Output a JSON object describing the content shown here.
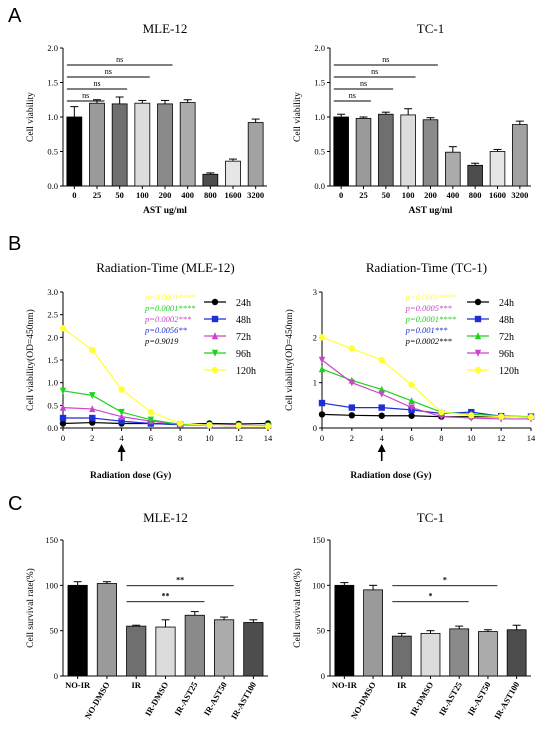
{
  "figure": {
    "panels": [
      "A",
      "B",
      "C"
    ]
  },
  "chart_data": [
    {
      "type": "bar",
      "panel": "A",
      "title": "MLE-12",
      "xlabel": "AST ug/ml",
      "ylabel": "Cell viability",
      "ylim": [
        0,
        2.0
      ],
      "yticks": [
        "0.0",
        "0.5",
        "1.0",
        "1.5",
        "2.0"
      ],
      "categories": [
        "0",
        "25",
        "50",
        "100",
        "200",
        "400",
        "800",
        "1600",
        "3200"
      ],
      "values": [
        1.0,
        1.2,
        1.19,
        1.2,
        1.19,
        1.21,
        0.17,
        0.36,
        0.92
      ],
      "errors": [
        0.15,
        0.05,
        0.1,
        0.04,
        0.05,
        0.04,
        0.02,
        0.03,
        0.05
      ],
      "fills": [
        "#000000",
        "#9a9a9a",
        "#6f6f6f",
        "#dcdcdc",
        "#8a8a8a",
        "#ababab",
        "#4d4d4d",
        "#e6e6e6",
        "#a2a2a2"
      ],
      "brackets": [
        {
          "from": 0,
          "to": 1,
          "label": "ns"
        },
        {
          "from": 0,
          "to": 2,
          "label": "ns"
        },
        {
          "from": 0,
          "to": 3,
          "label": "ns"
        },
        {
          "from": 0,
          "to": 4,
          "label": "ns"
        }
      ],
      "grid": false
    },
    {
      "type": "bar",
      "panel": "A",
      "title": "TC-1",
      "xlabel": "AST ug/ml",
      "ylabel": "Cell viability",
      "ylim": [
        0,
        2.0
      ],
      "yticks": [
        "0.0",
        "0.5",
        "1.0",
        "1.5",
        "2.0"
      ],
      "categories": [
        "0",
        "25",
        "50",
        "100",
        "200",
        "400",
        "800",
        "1600",
        "3200"
      ],
      "values": [
        1.0,
        0.98,
        1.04,
        1.03,
        0.96,
        0.49,
        0.3,
        0.5,
        0.89
      ],
      "errors": [
        0.04,
        0.02,
        0.03,
        0.09,
        0.03,
        0.08,
        0.03,
        0.03,
        0.05
      ],
      "fills": [
        "#000000",
        "#9a9a9a",
        "#6f6f6f",
        "#dcdcdc",
        "#8a8a8a",
        "#ababab",
        "#4d4d4d",
        "#e6e6e6",
        "#a2a2a2"
      ],
      "brackets": [
        {
          "from": 0,
          "to": 1,
          "label": "ns"
        },
        {
          "from": 0,
          "to": 2,
          "label": "ns"
        },
        {
          "from": 0,
          "to": 3,
          "label": "ns"
        },
        {
          "from": 0,
          "to": 4,
          "label": "ns"
        }
      ],
      "grid": false
    },
    {
      "type": "line",
      "panel": "B",
      "title": "Radiation-Time (MLE-12)",
      "xlabel": "Radiation dose (Gy)",
      "ylabel": "Cell viability(OD=450nm)",
      "xlim": [
        0,
        14
      ],
      "ylim": [
        0,
        3.0
      ],
      "xticks": [
        "0",
        "2",
        "4",
        "6",
        "8",
        "10",
        "12",
        "14"
      ],
      "yticks": [
        "0.0",
        "0.5",
        "1.0",
        "1.5",
        "2.0",
        "2.5",
        "3.0"
      ],
      "x": [
        0,
        2,
        4,
        6,
        8,
        10,
        12,
        14
      ],
      "series": [
        {
          "name": "24h",
          "color": "#000000",
          "marker": "circle",
          "values": [
            0.1,
            0.12,
            0.1,
            0.1,
            0.08,
            0.1,
            0.09,
            0.1
          ]
        },
        {
          "name": "48h",
          "color": "#1f2fd6",
          "marker": "square",
          "values": [
            0.22,
            0.22,
            0.15,
            0.1,
            0.07,
            0.06,
            0.05,
            0.05
          ]
        },
        {
          "name": "72h",
          "color": "#cc44cc",
          "marker": "triangle",
          "values": [
            0.45,
            0.42,
            0.25,
            0.15,
            0.08,
            0.07,
            0.06,
            0.05
          ]
        },
        {
          "name": "96h",
          "color": "#1ed21e",
          "marker": "triangle-down",
          "values": [
            0.82,
            0.72,
            0.35,
            0.18,
            0.08,
            0.06,
            0.05,
            0.05
          ]
        },
        {
          "name": "120h",
          "color": "#ffff33",
          "marker": "circle",
          "values": [
            2.2,
            1.72,
            0.85,
            0.35,
            0.1,
            0.06,
            0.05,
            0.04
          ]
        }
      ],
      "annotations": [
        {
          "text": "p=0.0001****",
          "color": "#ffff33"
        },
        {
          "text": "p=0.0001****",
          "color": "#1ed21e"
        },
        {
          "text": "p=0.0002***",
          "color": "#cc44cc"
        },
        {
          "text": "p=0.0056**",
          "color": "#1f2fd6"
        },
        {
          "text": "p=0.9019",
          "color": "#000000"
        }
      ],
      "arrow_at": 4,
      "legend": "right"
    },
    {
      "type": "line",
      "panel": "B",
      "title": "Radiation-Time (TC-1)",
      "xlabel": "Radiation dose (Gy)",
      "ylabel": "Cell viability(OD=450nm)",
      "xlim": [
        0,
        14
      ],
      "ylim": [
        0,
        3
      ],
      "xticks": [
        "0",
        "2",
        "4",
        "6",
        "8",
        "10",
        "12",
        "14"
      ],
      "yticks": [
        "0",
        "1",
        "2",
        "3"
      ],
      "x": [
        0,
        2,
        4,
        6,
        8,
        10,
        12,
        14
      ],
      "series": [
        {
          "name": "24h",
          "color": "#000000",
          "marker": "circle",
          "values": [
            0.3,
            0.28,
            0.27,
            0.27,
            0.25,
            0.25,
            0.25,
            0.24
          ]
        },
        {
          "name": "48h",
          "color": "#1f2fd6",
          "marker": "square",
          "values": [
            0.55,
            0.45,
            0.45,
            0.4,
            0.32,
            0.35,
            0.26,
            0.25
          ]
        },
        {
          "name": "72h",
          "color": "#1ed21e",
          "marker": "triangle",
          "values": [
            1.3,
            1.05,
            0.85,
            0.6,
            0.35,
            0.3,
            0.27,
            0.25
          ]
        },
        {
          "name": "96h",
          "color": "#cc44cc",
          "marker": "triangle-down",
          "values": [
            1.5,
            1.0,
            0.75,
            0.45,
            0.25,
            0.22,
            0.2,
            0.2
          ]
        },
        {
          "name": "120h",
          "color": "#ffff33",
          "marker": "circle",
          "values": [
            2.0,
            1.75,
            1.5,
            0.95,
            0.35,
            0.28,
            0.25,
            0.24
          ]
        }
      ],
      "annotations": [
        {
          "text": "p=0.0001****",
          "color": "#ffff33"
        },
        {
          "text": "p=0.0005***",
          "color": "#cc44cc"
        },
        {
          "text": "p=0.0001****",
          "color": "#1ed21e"
        },
        {
          "text": "p=0.001***",
          "color": "#1f2fd6"
        },
        {
          "text": "p=0.0002***",
          "color": "#000000"
        }
      ],
      "arrow_at": 4,
      "legend": "right"
    },
    {
      "type": "bar",
      "panel": "C",
      "title": "MLE-12",
      "xlabel": "",
      "ylabel": "Cell survival rate(%)",
      "ylim": [
        0,
        150
      ],
      "yticks": [
        "0",
        "50",
        "100",
        "150"
      ],
      "categories": [
        "NO-IR",
        "NO-DMSO",
        "IR",
        "IR-DMSO",
        "IR-AST25",
        "IR-AST50",
        "IR-AST100"
      ],
      "values": [
        100,
        102,
        55,
        54,
        67,
        62,
        59
      ],
      "errors": [
        4,
        2,
        1,
        8,
        4,
        3,
        3
      ],
      "fills": [
        "#000000",
        "#9a9a9a",
        "#6f6f6f",
        "#dcdcdc",
        "#8a8a8a",
        "#ababab",
        "#4d4d4d"
      ],
      "brackets": [
        {
          "from": 2,
          "to": 4,
          "label": "**"
        },
        {
          "from": 2,
          "to": 5,
          "label": "**"
        }
      ],
      "grid": false
    },
    {
      "type": "bar",
      "panel": "C",
      "title": "TC-1",
      "xlabel": "",
      "ylabel": "Cell survival rate(%)",
      "ylim": [
        0,
        150
      ],
      "yticks": [
        "0",
        "50",
        "100",
        "150"
      ],
      "categories": [
        "NO-IR",
        "NO-DMSO",
        "IR",
        "IR-DMSO",
        "IR-AST25",
        "IR-AST50",
        "IR-AST100"
      ],
      "values": [
        100,
        95,
        44,
        47,
        52,
        49,
        51
      ],
      "errors": [
        3,
        5,
        3,
        3,
        3,
        2,
        5
      ],
      "fills": [
        "#000000",
        "#9a9a9a",
        "#6f6f6f",
        "#dcdcdc",
        "#8a8a8a",
        "#ababab",
        "#4d4d4d"
      ],
      "brackets": [
        {
          "from": 2,
          "to": 4,
          "label": "*"
        },
        {
          "from": 2,
          "to": 5,
          "label": "*"
        }
      ],
      "grid": false
    }
  ]
}
